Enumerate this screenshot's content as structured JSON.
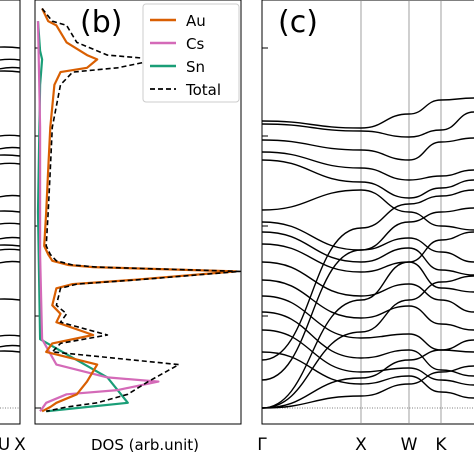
{
  "chart_data": [
    {
      "type": "line",
      "panel": "(a)",
      "x_tick_labels": [
        "U",
        "X"
      ],
      "note": "partially cropped band-structure panel at left edge"
    },
    {
      "type": "line",
      "panel": "(b)",
      "xlabel": "DOS (arb.unit)",
      "legend_placement": "top-right",
      "legend": [
        {
          "name": "Au",
          "color": "#d95f02",
          "dash": "solid"
        },
        {
          "name": "Cs",
          "color": "#d46ab8",
          "dash": "solid"
        },
        {
          "name": "Sn",
          "color": "#1a9e77",
          "dash": "solid"
        },
        {
          "name": "Total",
          "color": "#000000",
          "dash": "dashed"
        }
      ],
      "series": [
        {
          "name": "Total",
          "color": "#000000",
          "points": [
            [
              0.03,
              0.02
            ],
            [
              0.08,
              0.05
            ],
            [
              0.15,
              0.06
            ],
            [
              0.2,
              0.1
            ],
            [
              0.35,
              0.13
            ],
            [
              0.6,
              0.14
            ],
            [
              0.4,
              0.16
            ],
            [
              0.18,
              0.17
            ],
            [
              0.12,
              0.2
            ],
            [
              0.08,
              0.3
            ],
            [
              0.07,
              0.4
            ],
            [
              0.06,
              0.5
            ],
            [
              0.05,
              0.58
            ],
            [
              0.07,
              0.6
            ],
            [
              0.1,
              0.615
            ],
            [
              0.18,
              0.625
            ],
            [
              0.3,
              0.63
            ],
            [
              1.0,
              0.64
            ],
            [
              0.5,
              0.66
            ],
            [
              0.2,
              0.67
            ],
            [
              0.12,
              0.68
            ],
            [
              0.1,
              0.72
            ],
            [
              0.15,
              0.74
            ],
            [
              0.12,
              0.76
            ],
            [
              0.35,
              0.79
            ],
            [
              0.12,
              0.81
            ],
            [
              0.08,
              0.83
            ],
            [
              0.7,
              0.86
            ],
            [
              0.55,
              0.9
            ],
            [
              0.45,
              0.93
            ],
            [
              0.3,
              0.95
            ],
            [
              0.15,
              0.96
            ],
            [
              0.05,
              0.97
            ]
          ]
        },
        {
          "name": "Au",
          "color": "#d95f02",
          "points": [
            [
              0.03,
              0.02
            ],
            [
              0.06,
              0.05
            ],
            [
              0.1,
              0.06
            ],
            [
              0.15,
              0.1
            ],
            [
              0.25,
              0.13
            ],
            [
              0.3,
              0.14
            ],
            [
              0.25,
              0.16
            ],
            [
              0.12,
              0.17
            ],
            [
              0.09,
              0.2
            ],
            [
              0.07,
              0.3
            ],
            [
              0.06,
              0.4
            ],
            [
              0.05,
              0.5
            ],
            [
              0.04,
              0.58
            ],
            [
              0.06,
              0.6
            ],
            [
              0.08,
              0.615
            ],
            [
              0.16,
              0.625
            ],
            [
              0.28,
              0.63
            ],
            [
              0.98,
              0.64
            ],
            [
              0.48,
              0.66
            ],
            [
              0.18,
              0.67
            ],
            [
              0.1,
              0.68
            ],
            [
              0.08,
              0.72
            ],
            [
              0.12,
              0.74
            ],
            [
              0.1,
              0.76
            ],
            [
              0.28,
              0.79
            ],
            [
              0.08,
              0.81
            ],
            [
              0.05,
              0.83
            ],
            [
              0.3,
              0.86
            ],
            [
              0.25,
              0.9
            ],
            [
              0.2,
              0.93
            ],
            [
              0.1,
              0.95
            ],
            [
              0.07,
              0.96
            ],
            [
              0.03,
              0.97
            ]
          ]
        },
        {
          "name": "Cs",
          "color": "#d46ab8",
          "points": [
            [
              0.01,
              0.05
            ],
            [
              0.02,
              0.3
            ],
            [
              0.02,
              0.6
            ],
            [
              0.03,
              0.8
            ],
            [
              0.1,
              0.86
            ],
            [
              0.35,
              0.89
            ],
            [
              0.6,
              0.9
            ],
            [
              0.4,
              0.92
            ],
            [
              0.15,
              0.93
            ],
            [
              0.05,
              0.95
            ],
            [
              0.02,
              0.97
            ]
          ]
        },
        {
          "name": "Sn",
          "color": "#1a9e77",
          "points": [
            [
              0.01,
              0.05
            ],
            [
              0.02,
              0.12
            ],
            [
              0.03,
              0.14
            ],
            [
              0.02,
              0.2
            ],
            [
              0.01,
              0.5
            ],
            [
              0.02,
              0.8
            ],
            [
              0.35,
              0.89
            ],
            [
              0.45,
              0.95
            ],
            [
              0.25,
              0.96
            ],
            [
              0.05,
              0.97
            ]
          ]
        }
      ]
    },
    {
      "type": "line",
      "panel": "(c)",
      "x_tick_labels": [
        "Γ",
        "X",
        "W",
        "K"
      ],
      "series_color": "#000000"
    }
  ],
  "labels": {
    "panel_b": "(b)",
    "panel_c": "(c)",
    "xlabel_b": "DOS (arb.unit)",
    "tick_a_1": "U",
    "tick_a_2": "X",
    "tick_c_1": "Γ",
    "tick_c_2": "X",
    "tick_c_3": "W",
    "tick_c_4": "K"
  }
}
